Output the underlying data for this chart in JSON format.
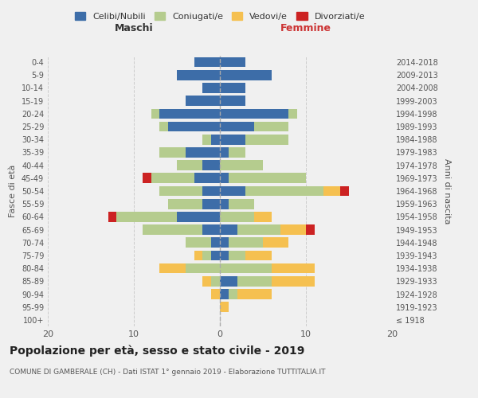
{
  "age_groups": [
    "100+",
    "95-99",
    "90-94",
    "85-89",
    "80-84",
    "75-79",
    "70-74",
    "65-69",
    "60-64",
    "55-59",
    "50-54",
    "45-49",
    "40-44",
    "35-39",
    "30-34",
    "25-29",
    "20-24",
    "15-19",
    "10-14",
    "5-9",
    "0-4"
  ],
  "birth_years": [
    "≤ 1918",
    "1919-1923",
    "1924-1928",
    "1929-1933",
    "1934-1938",
    "1939-1943",
    "1944-1948",
    "1949-1953",
    "1954-1958",
    "1959-1963",
    "1964-1968",
    "1969-1973",
    "1974-1978",
    "1979-1983",
    "1984-1988",
    "1989-1993",
    "1994-1998",
    "1999-2003",
    "2004-2008",
    "2009-2013",
    "2014-2018"
  ],
  "colors": {
    "celibi": "#3d6da8",
    "coniugati": "#b5cc8e",
    "vedovi": "#f5c050",
    "divorziati": "#cc2222"
  },
  "maschi": {
    "celibi": [
      0,
      0,
      0,
      0,
      0,
      1,
      1,
      2,
      5,
      2,
      2,
      3,
      2,
      4,
      1,
      6,
      7,
      4,
      2,
      5,
      3
    ],
    "coniugati": [
      0,
      0,
      0,
      1,
      4,
      1,
      3,
      7,
      7,
      4,
      5,
      5,
      3,
      3,
      1,
      1,
      1,
      0,
      0,
      0,
      0
    ],
    "vedovi": [
      0,
      0,
      1,
      1,
      3,
      1,
      0,
      0,
      0,
      0,
      0,
      0,
      0,
      0,
      0,
      0,
      0,
      0,
      0,
      0,
      0
    ],
    "divorziati": [
      0,
      0,
      0,
      0,
      0,
      0,
      0,
      0,
      1,
      0,
      0,
      1,
      0,
      0,
      0,
      0,
      0,
      0,
      0,
      0,
      0
    ]
  },
  "femmine": {
    "celibi": [
      0,
      0,
      1,
      2,
      0,
      1,
      1,
      2,
      0,
      1,
      3,
      1,
      0,
      1,
      3,
      4,
      8,
      3,
      3,
      6,
      3
    ],
    "coniugati": [
      0,
      0,
      1,
      4,
      6,
      2,
      4,
      5,
      4,
      3,
      9,
      9,
      5,
      2,
      5,
      4,
      1,
      0,
      0,
      0,
      0
    ],
    "vedovi": [
      0,
      1,
      4,
      5,
      5,
      3,
      3,
      3,
      2,
      0,
      2,
      0,
      0,
      0,
      0,
      0,
      0,
      0,
      0,
      0,
      0
    ],
    "divorziati": [
      0,
      0,
      0,
      0,
      0,
      0,
      0,
      1,
      0,
      0,
      1,
      0,
      0,
      0,
      0,
      0,
      0,
      0,
      0,
      0,
      0
    ]
  },
  "xlim": 20,
  "title": "Popolazione per età, sesso e stato civile - 2019",
  "subtitle": "COMUNE DI GAMBERALE (CH) - Dati ISTAT 1° gennaio 2019 - Elaborazione TUTTITALIA.IT",
  "ylabel_left": "Fasce di età",
  "ylabel_right": "Anni di nascita",
  "xlabel_maschi": "Maschi",
  "xlabel_femmine": "Femmine",
  "legend_labels": [
    "Celibi/Nubili",
    "Coniugati/e",
    "Vedovi/e",
    "Divorziati/e"
  ],
  "background_color": "#f0f0f0"
}
